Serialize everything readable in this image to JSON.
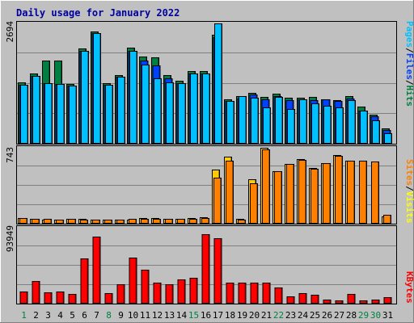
{
  "chart_data": {
    "type": "bar",
    "title": "Daily usage for January 2022",
    "categories": [
      "1",
      "2",
      "3",
      "4",
      "5",
      "6",
      "7",
      "8",
      "9",
      "10",
      "11",
      "12",
      "13",
      "14",
      "15",
      "16",
      "17",
      "18",
      "19",
      "20",
      "21",
      "22",
      "23",
      "24",
      "25",
      "26",
      "27",
      "28",
      "29",
      "30",
      "31"
    ],
    "weekend_days": [
      "1",
      "8",
      "15",
      "22",
      "29",
      "30"
    ],
    "panels": [
      {
        "name": "hits-files-pages",
        "ymax_label": "2694",
        "ylim": [
          0,
          2694
        ],
        "legend": [
          {
            "label": "Pages",
            "color": "#00c0ff"
          },
          {
            "label": "/",
            "color": "#000000"
          },
          {
            "label": "Files",
            "color": "#0040ff"
          },
          {
            "label": "/",
            "color": "#000000"
          },
          {
            "label": "Hits",
            "color": "#008040"
          }
        ],
        "series": [
          {
            "name": "Hits",
            "color": "#008040",
            "values": [
              1366,
              1571,
              1862,
              1858,
              1340,
              2142,
              2522,
              1360,
              1536,
              2143,
              1945,
              1932,
              1533,
              1411,
              1620,
              1620,
              2433,
              990,
              1059,
              1143,
              1052,
              1118,
              1037,
              1032,
              1040,
              999,
              972,
              1070,
              833,
              657,
              344
            ]
          },
          {
            "name": "Files",
            "color": "#0040ff",
            "values": [
              1312,
              1519,
              1359,
              1330,
              1302,
              2088,
              2472,
              1315,
              1492,
              2085,
              1861,
              1759,
              1470,
              1360,
              1566,
              1566,
              2381,
              961,
              1005,
              1097,
              989,
              1073,
              978,
              992,
              972,
              990,
              950,
              1021,
              749,
              606,
              313
            ]
          },
          {
            "name": "Pages",
            "color": "#00c0ff",
            "values": [
              1312,
              1519,
              1359,
              1330,
              1302,
              2088,
              2472,
              1315,
              1492,
              2085,
              1777,
              1459,
              1379,
              1360,
              1566,
              1566,
              2694,
              966,
              1072,
              1032,
              808,
              1050,
              783,
              990,
              906,
              847,
              816,
              970,
              749,
              531,
              239
            ]
          }
        ]
      },
      {
        "name": "visits-sites",
        "ymax_label": "743",
        "ylim": [
          0,
          743
        ],
        "legend": [
          {
            "label": "Sites",
            "color": "#ff8000"
          },
          {
            "label": "/",
            "color": "#000000"
          },
          {
            "label": "Visits",
            "color": "#ffff00"
          }
        ],
        "series": [
          {
            "name": "Visits",
            "color": "#ffcc00",
            "values": [
              58,
              45,
              43,
              39,
              45,
              45,
              40,
              42,
              43,
              42,
              55,
              53,
              48,
              45,
              53,
              60,
              532,
              660,
              46,
              434,
              743,
              513,
              582,
              634,
              545,
              596,
              670,
              619,
              0,
              0,
              75
            ]
          },
          {
            "name": "Sites",
            "color": "#ff8000",
            "values": [
              54,
              50,
              48,
              43,
              47,
              42,
              43,
              41,
              41,
              46,
              50,
              45,
              48,
              47,
              48,
              55,
              452,
              617,
              41,
              393,
              724,
              512,
              588,
              626,
              540,
              596,
              661,
              615,
              617,
              612,
              86
            ]
          }
        ]
      },
      {
        "name": "kbytes",
        "ymax_label": "93949",
        "ylim": [
          0,
          93949
        ],
        "legend": [
          {
            "label": "KBytes",
            "color": "#ff0000"
          }
        ],
        "series": [
          {
            "name": "KBytes",
            "color": "#ff0000",
            "values": [
              15072,
              28150,
              13852,
              15072,
              12080,
              56000,
              82580,
              13000,
              24000,
              56500,
              41500,
              26400,
              24400,
              30400,
              31500,
              85600,
              81000,
              26000,
              26000,
              26000,
              26000,
              19600,
              9000,
              13000,
              11000,
              4500,
              3500,
              12000,
              3500,
              4500,
              7800
            ]
          }
        ]
      }
    ]
  },
  "colors": {
    "background": "#c0c0c0",
    "border_light": "#ffffff",
    "border_dark": "#808080",
    "grid": "#808080",
    "xtick_weekday": "#000000",
    "xtick_weekend": "#008040"
  }
}
